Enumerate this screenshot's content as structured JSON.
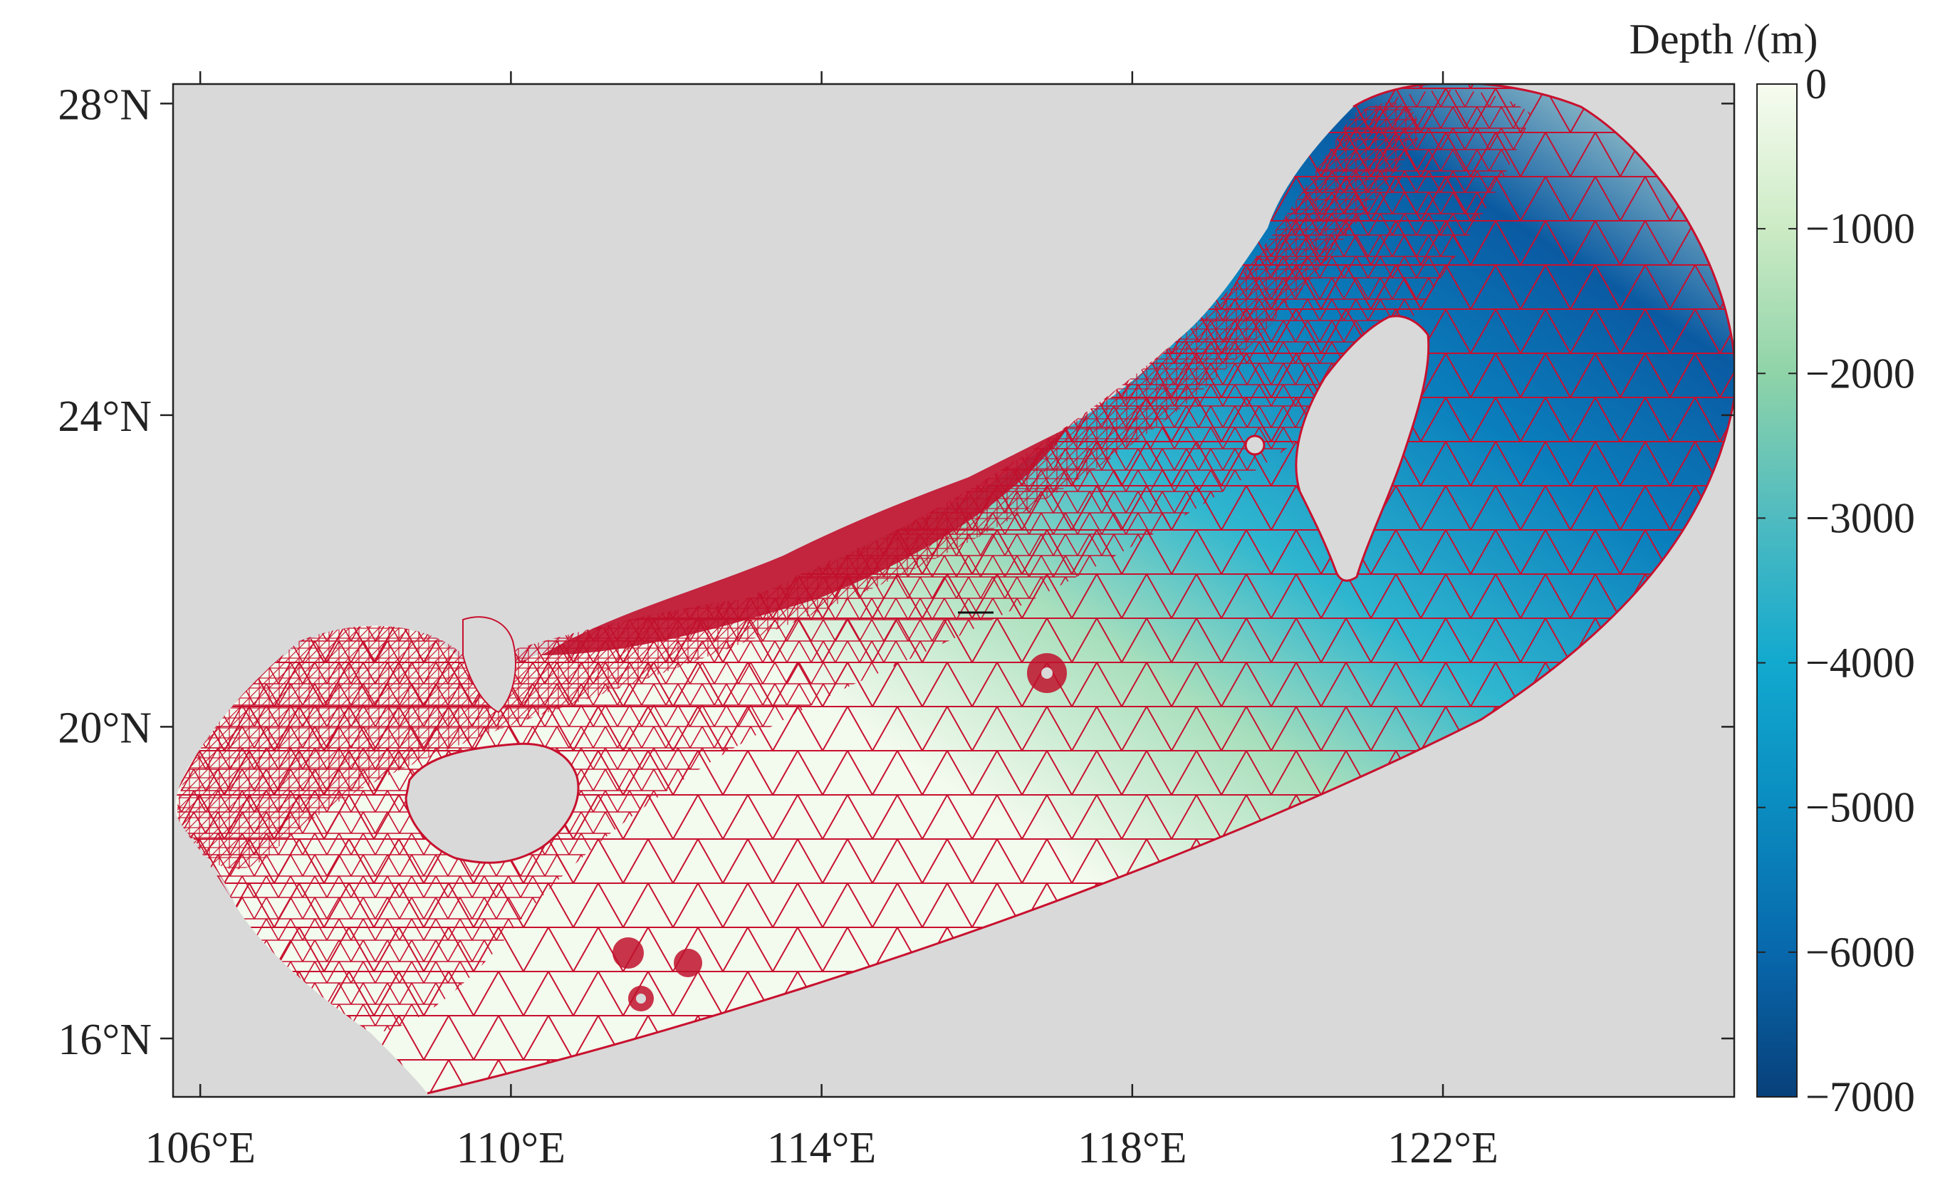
{
  "map": {
    "x_ticks": [
      {
        "value": 106,
        "label": "106°E"
      },
      {
        "value": 110,
        "label": "110°E"
      },
      {
        "value": 114,
        "label": "114°E"
      },
      {
        "value": 118,
        "label": "118°E"
      },
      {
        "value": 122,
        "label": "122°E"
      }
    ],
    "y_ticks": [
      {
        "value": 16,
        "label": "16°N"
      },
      {
        "value": 20,
        "label": "20°N"
      },
      {
        "value": 24,
        "label": "24°N"
      },
      {
        "value": 28,
        "label": "28°N"
      }
    ],
    "lon_range": [
      105.65,
      125.75
    ],
    "lat_range": [
      15.25,
      28.25
    ],
    "land_color": "#d9d9d9",
    "mesh_color": "#c8102e"
  },
  "colorbar": {
    "title": "Depth /(m)",
    "min": -7000,
    "max": 0,
    "ticks": [
      {
        "value": 0,
        "label": "0"
      },
      {
        "value": -1000,
        "label": "−1000"
      },
      {
        "value": -2000,
        "label": "−2000"
      },
      {
        "value": -3000,
        "label": "−3000"
      },
      {
        "value": -4000,
        "label": "−4000"
      },
      {
        "value": -5000,
        "label": "−5000"
      },
      {
        "value": -6000,
        "label": "−6000"
      },
      {
        "value": -7000,
        "label": "−7000"
      }
    ],
    "stops": [
      "#f7fcf0",
      "#ccebc5",
      "#8fd3a8",
      "#4fbbc0",
      "#12a9cf",
      "#0a8cc0",
      "#0868ac",
      "#08407a"
    ]
  }
}
